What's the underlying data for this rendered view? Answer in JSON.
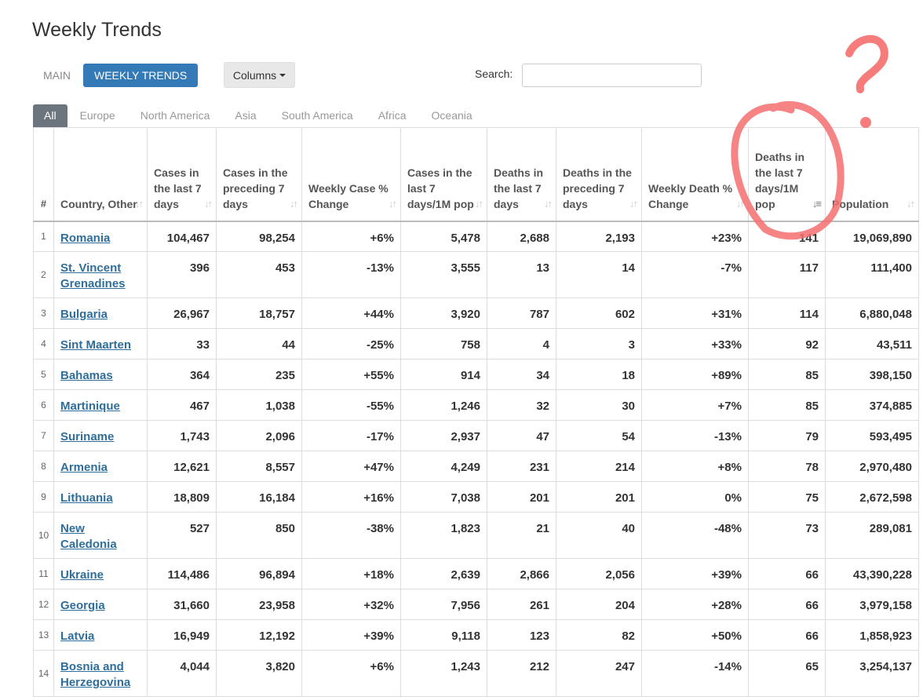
{
  "page_title": "Weekly Trends",
  "nav": {
    "main": "MAIN",
    "weekly": "WEEKLY TRENDS"
  },
  "columns_btn": "Columns",
  "search": {
    "label": "Search:",
    "value": "",
    "placeholder": ""
  },
  "tabs": [
    "All",
    "Europe",
    "North America",
    "Asia",
    "South America",
    "Africa",
    "Oceania"
  ],
  "columns": [
    "#",
    "Country, Other",
    "Cases in the last 7 days",
    "Cases in the preceding 7 days",
    "Weekly Case % Change",
    "Cases in the last 7 days/1M pop",
    "Deaths in the last 7 days",
    "Deaths in the preceding 7 days",
    "Weekly Death % Change",
    "Deaths in the last 7 days/1M pop",
    "Population"
  ],
  "rows": [
    [
      "1",
      "Romania",
      "104,467",
      "98,254",
      "+6%",
      "5,478",
      "2,688",
      "2,193",
      "+23%",
      "141",
      "19,069,890"
    ],
    [
      "2",
      "St. Vincent Grenadines",
      "396",
      "453",
      "-13%",
      "3,555",
      "13",
      "14",
      "-7%",
      "117",
      "111,400"
    ],
    [
      "3",
      "Bulgaria",
      "26,967",
      "18,757",
      "+44%",
      "3,920",
      "787",
      "602",
      "+31%",
      "114",
      "6,880,048"
    ],
    [
      "4",
      "Sint Maarten",
      "33",
      "44",
      "-25%",
      "758",
      "4",
      "3",
      "+33%",
      "92",
      "43,511"
    ],
    [
      "5",
      "Bahamas",
      "364",
      "235",
      "+55%",
      "914",
      "34",
      "18",
      "+89%",
      "85",
      "398,150"
    ],
    [
      "6",
      "Martinique",
      "467",
      "1,038",
      "-55%",
      "1,246",
      "32",
      "30",
      "+7%",
      "85",
      "374,885"
    ],
    [
      "7",
      "Suriname",
      "1,743",
      "2,096",
      "-17%",
      "2,937",
      "47",
      "54",
      "-13%",
      "79",
      "593,495"
    ],
    [
      "8",
      "Armenia",
      "12,621",
      "8,557",
      "+47%",
      "4,249",
      "231",
      "214",
      "+8%",
      "78",
      "2,970,480"
    ],
    [
      "9",
      "Lithuania",
      "18,809",
      "16,184",
      "+16%",
      "7,038",
      "201",
      "201",
      "0%",
      "75",
      "2,672,598"
    ],
    [
      "10",
      "New Caledonia",
      "527",
      "850",
      "-38%",
      "1,823",
      "21",
      "40",
      "-48%",
      "73",
      "289,081"
    ],
    [
      "11",
      "Ukraine",
      "114,486",
      "96,894",
      "+18%",
      "2,639",
      "2,866",
      "2,056",
      "+39%",
      "66",
      "43,390,228"
    ],
    [
      "12",
      "Georgia",
      "31,660",
      "23,958",
      "+32%",
      "7,956",
      "261",
      "204",
      "+28%",
      "66",
      "3,979,158"
    ],
    [
      "13",
      "Latvia",
      "16,949",
      "12,192",
      "+39%",
      "9,118",
      "123",
      "82",
      "+50%",
      "66",
      "1,858,923"
    ],
    [
      "14",
      "Bosnia and Herzegovina",
      "4,044",
      "3,820",
      "+6%",
      "1,243",
      "212",
      "247",
      "-14%",
      "65",
      "3,254,137"
    ]
  ],
  "annotation": {
    "text": "?",
    "color": "#f56e6e"
  },
  "colors": {
    "accent": "#337ab7",
    "link": "#2f6e9a",
    "tab_active": "#6c757d"
  }
}
